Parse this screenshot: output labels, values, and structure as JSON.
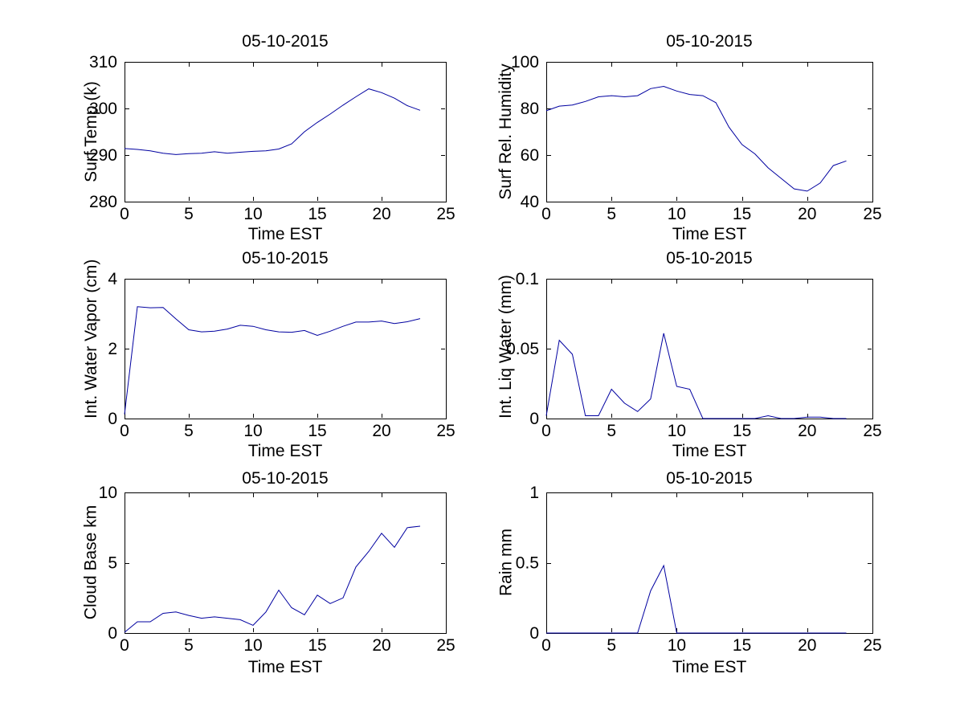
{
  "figure": {
    "background": "#FFFFFF",
    "axis_color": "#000000",
    "text_color": "#000000",
    "line_color": "#0000A0"
  },
  "chart_data": [
    {
      "id": "surf-temp",
      "type": "line",
      "title": "05-10-2015",
      "xlabel": "Time EST",
      "ylabel": "Surf Temp (k)",
      "xlim": [
        0,
        25
      ],
      "ylim": [
        280,
        310
      ],
      "xticks": [
        0,
        5,
        10,
        15,
        20,
        25
      ],
      "yticks": [
        280,
        290,
        300,
        310
      ],
      "grid": false,
      "legend": null,
      "x": [
        0,
        1,
        2,
        3,
        4,
        5,
        6,
        7,
        8,
        9,
        10,
        11,
        12,
        13,
        14,
        15,
        16,
        17,
        18,
        19,
        20,
        21,
        22,
        23
      ],
      "y": [
        291.4,
        291.2,
        290.9,
        290.4,
        290.1,
        290.3,
        290.4,
        290.7,
        290.4,
        290.6,
        290.8,
        290.9,
        291.3,
        292.4,
        295.0,
        297.0,
        298.8,
        300.7,
        302.5,
        304.2,
        303.4,
        302.2,
        300.6,
        299.6
      ]
    },
    {
      "id": "surf-rel-humidity",
      "type": "line",
      "title": "05-10-2015",
      "xlabel": "Time EST",
      "ylabel": "Surf Rel. Humidity",
      "xlim": [
        0,
        25
      ],
      "ylim": [
        40,
        100
      ],
      "xticks": [
        0,
        5,
        10,
        15,
        20,
        25
      ],
      "yticks": [
        40,
        60,
        80,
        100
      ],
      "grid": false,
      "legend": null,
      "x": [
        0,
        1,
        2,
        3,
        4,
        5,
        6,
        7,
        8,
        9,
        10,
        11,
        12,
        13,
        14,
        15,
        16,
        17,
        18,
        19,
        20,
        21,
        22,
        23
      ],
      "y": [
        79,
        81,
        81.5,
        83,
        85,
        85.5,
        85,
        85.5,
        88.5,
        89.5,
        87.5,
        86,
        85.5,
        82.5,
        72,
        64.5,
        60.5,
        54.5,
        50,
        45.5,
        44.5,
        48,
        55.5,
        57.5
      ]
    },
    {
      "id": "int-water-vapor",
      "type": "line",
      "title": "05-10-2015",
      "xlabel": "Time EST",
      "ylabel": "Int. Water Vapor (cm)",
      "xlim": [
        0,
        25
      ],
      "ylim": [
        0,
        4
      ],
      "xticks": [
        0,
        5,
        10,
        15,
        20,
        25
      ],
      "yticks": [
        0,
        2,
        4
      ],
      "grid": false,
      "legend": null,
      "x": [
        0,
        1,
        2,
        3,
        4,
        5,
        6,
        7,
        8,
        9,
        10,
        11,
        12,
        13,
        14,
        15,
        16,
        17,
        18,
        19,
        20,
        21,
        22,
        23
      ],
      "y": [
        0.12,
        3.2,
        3.17,
        3.18,
        2.85,
        2.54,
        2.48,
        2.5,
        2.56,
        2.67,
        2.64,
        2.54,
        2.48,
        2.47,
        2.52,
        2.38,
        2.5,
        2.64,
        2.76,
        2.76,
        2.79,
        2.72,
        2.77,
        2.86
      ]
    },
    {
      "id": "int-liq-water",
      "type": "line",
      "title": "05-10-2015",
      "xlabel": "Time EST",
      "ylabel": "Int. Liq Water (mm)",
      "xlim": [
        0,
        25
      ],
      "ylim": [
        0,
        0.1
      ],
      "xticks": [
        0,
        5,
        10,
        15,
        20,
        25
      ],
      "yticks": [
        0,
        0.05,
        0.1
      ],
      "grid": false,
      "legend": null,
      "x": [
        0,
        1,
        2,
        3,
        4,
        5,
        6,
        7,
        8,
        9,
        10,
        11,
        12,
        13,
        14,
        15,
        16,
        17,
        18,
        19,
        20,
        21,
        22,
        23
      ],
      "y": [
        0.002,
        0.056,
        0.046,
        0.002,
        0.002,
        0.021,
        0.011,
        0.005,
        0.014,
        0.061,
        0.023,
        0.021,
        0,
        0,
        0,
        0,
        0,
        0.002,
        0,
        0,
        0.001,
        0.001,
        0,
        0
      ]
    },
    {
      "id": "cloud-base",
      "type": "line",
      "title": "05-10-2015",
      "xlabel": "Time EST",
      "ylabel": "Cloud Base km",
      "xlim": [
        0,
        25
      ],
      "ylim": [
        0,
        10
      ],
      "xticks": [
        0,
        5,
        10,
        15,
        20,
        25
      ],
      "yticks": [
        0,
        5,
        10
      ],
      "grid": false,
      "legend": null,
      "x": [
        0,
        1,
        2,
        3,
        4,
        5,
        6,
        7,
        8,
        9,
        10,
        11,
        12,
        13,
        14,
        15,
        16,
        17,
        18,
        19,
        20,
        21,
        22,
        23
      ],
      "y": [
        0.05,
        0.8,
        0.8,
        1.4,
        1.5,
        1.25,
        1.05,
        1.15,
        1.05,
        0.95,
        0.55,
        1.5,
        3.05,
        1.8,
        1.3,
        2.7,
        2.1,
        2.5,
        4.7,
        5.8,
        7.1,
        6.1,
        7.5,
        7.6
      ]
    },
    {
      "id": "rain",
      "type": "line",
      "title": "05-10-2015",
      "xlabel": "Time EST",
      "ylabel": "Rain mm",
      "xlim": [
        0,
        25
      ],
      "ylim": [
        0,
        1
      ],
      "xticks": [
        0,
        5,
        10,
        15,
        20,
        25
      ],
      "yticks": [
        0,
        0.5,
        1
      ],
      "grid": false,
      "legend": null,
      "x": [
        0,
        1,
        2,
        3,
        4,
        5,
        6,
        7,
        8,
        9,
        10,
        11,
        12,
        13,
        14,
        15,
        16,
        17,
        18,
        19,
        20,
        21,
        22,
        23
      ],
      "y": [
        0,
        0,
        0,
        0,
        0,
        0,
        0,
        0,
        0.3,
        0.48,
        0,
        0,
        0,
        0,
        0,
        0,
        0,
        0,
        0,
        0,
        0,
        0,
        0,
        0
      ]
    }
  ]
}
